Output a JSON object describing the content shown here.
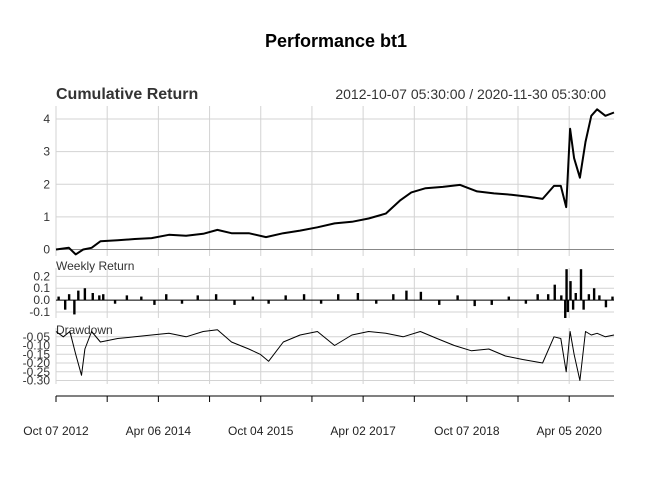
{
  "chart_data": {
    "type": "line",
    "title": "Performance bt1",
    "date_range": "2012-10-07 05:30:00 / 2020-11-30 05:30:00",
    "x_tick_labels": [
      "Oct 07 2012",
      "Apr 06 2014",
      "Oct 04 2015",
      "Apr 02 2017",
      "Oct 07 2018",
      "Apr 05 2020"
    ],
    "panels": [
      {
        "label": "Cumulative Return",
        "type": "line",
        "ylim": [
          -0.2,
          4.4
        ],
        "yticks": [
          "0",
          "1",
          "2",
          "3",
          "4"
        ],
        "x": [
          "2012-10-07",
          "2012-12-15",
          "2013-01-20",
          "2013-03-01",
          "2013-04-15",
          "2013-06-01",
          "2013-09-01",
          "2013-12-01",
          "2014-03-01",
          "2014-06-01",
          "2014-09-01",
          "2014-12-01",
          "2015-02-15",
          "2015-05-01",
          "2015-08-01",
          "2015-11-01",
          "2016-02-01",
          "2016-05-01",
          "2016-08-01",
          "2016-11-01",
          "2017-02-01",
          "2017-05-01",
          "2017-08-01",
          "2017-10-15",
          "2017-12-15",
          "2018-03-01",
          "2018-06-01",
          "2018-09-01",
          "2018-12-01",
          "2019-03-01",
          "2019-06-01",
          "2019-09-01",
          "2019-11-15",
          "2020-01-15",
          "2020-02-20",
          "2020-03-20",
          "2020-04-10",
          "2020-05-01",
          "2020-06-01",
          "2020-07-01",
          "2020-08-01",
          "2020-09-01",
          "2020-10-15",
          "2020-11-30"
        ],
        "values": [
          0.0,
          0.05,
          -0.15,
          0.0,
          0.05,
          0.25,
          0.28,
          0.32,
          0.35,
          0.45,
          0.42,
          0.48,
          0.6,
          0.5,
          0.5,
          0.38,
          0.5,
          0.58,
          0.68,
          0.8,
          0.85,
          0.95,
          1.1,
          1.5,
          1.75,
          1.88,
          1.92,
          1.98,
          1.78,
          1.72,
          1.68,
          1.62,
          1.55,
          1.95,
          1.95,
          1.3,
          3.7,
          2.8,
          2.2,
          3.3,
          4.1,
          4.3,
          4.1,
          4.2
        ]
      },
      {
        "label": "Weekly Return",
        "type": "bar",
        "ylim": [
          -0.15,
          0.27
        ],
        "yticks": [
          "0.2",
          "0.1",
          "0.0",
          "-0.1"
        ],
        "x": [
          "2012-10-21",
          "2012-11-25",
          "2012-12-16",
          "2013-01-13",
          "2013-02-03",
          "2013-03-10",
          "2013-04-21",
          "2013-05-26",
          "2013-06-16",
          "2013-08-18",
          "2013-10-20",
          "2014-01-05",
          "2014-03-16",
          "2014-05-18",
          "2014-08-10",
          "2014-11-02",
          "2015-02-08",
          "2015-05-17",
          "2015-08-23",
          "2015-11-15",
          "2016-02-14",
          "2016-05-22",
          "2016-08-21",
          "2016-11-20",
          "2017-03-05",
          "2017-06-11",
          "2017-09-10",
          "2017-11-19",
          "2018-02-04",
          "2018-05-13",
          "2018-08-19",
          "2018-11-18",
          "2019-02-17",
          "2019-05-19",
          "2019-08-18",
          "2019-10-20",
          "2019-12-15",
          "2020-01-19",
          "2020-02-23",
          "2020-03-15",
          "2020-03-22",
          "2020-03-29",
          "2020-04-12",
          "2020-04-26",
          "2020-05-10",
          "2020-06-07",
          "2020-06-21",
          "2020-07-19",
          "2020-08-16",
          "2020-09-13",
          "2020-10-18",
          "2020-11-22"
        ],
        "values": [
          0.03,
          -0.08,
          0.05,
          -0.12,
          0.08,
          0.1,
          0.06,
          0.04,
          0.05,
          -0.03,
          0.04,
          0.03,
          -0.04,
          0.05,
          -0.03,
          0.04,
          0.05,
          -0.04,
          0.03,
          -0.03,
          0.04,
          0.05,
          -0.03,
          0.05,
          0.06,
          -0.03,
          0.05,
          0.08,
          0.07,
          -0.04,
          0.04,
          -0.05,
          -0.04,
          0.03,
          -0.03,
          0.05,
          0.05,
          0.13,
          0.04,
          -0.15,
          0.26,
          -0.1,
          0.16,
          -0.08,
          0.06,
          0.26,
          -0.08,
          0.05,
          0.1,
          0.04,
          -0.06,
          0.03
        ]
      },
      {
        "label": "Drawdown",
        "type": "line",
        "ylim": [
          -0.32,
          0.0
        ],
        "yticks": [
          "-0.05",
          "-0.10",
          "-0.15",
          "-0.20",
          "-0.25",
          "-0.30"
        ],
        "x": [
          "2012-10-07",
          "2012-11-15",
          "2012-12-20",
          "2013-01-20",
          "2013-02-20",
          "2013-03-10",
          "2013-04-15",
          "2013-06-01",
          "2013-09-01",
          "2013-12-01",
          "2014-03-01",
          "2014-06-01",
          "2014-09-01",
          "2014-12-01",
          "2015-02-15",
          "2015-05-01",
          "2015-08-01",
          "2015-10-01",
          "2015-11-15",
          "2016-02-01",
          "2016-05-01",
          "2016-08-01",
          "2016-11-01",
          "2017-02-01",
          "2017-05-01",
          "2017-08-01",
          "2017-11-01",
          "2018-02-01",
          "2018-05-01",
          "2018-08-01",
          "2018-11-01",
          "2019-02-01",
          "2019-05-01",
          "2019-08-01",
          "2019-11-15",
          "2020-01-15",
          "2020-02-20",
          "2020-03-20",
          "2020-04-10",
          "2020-05-01",
          "2020-06-01",
          "2020-07-01",
          "2020-08-01",
          "2020-09-01",
          "2020-10-15",
          "2020-11-30"
        ],
        "values": [
          -0.02,
          -0.05,
          -0.02,
          -0.15,
          -0.27,
          -0.12,
          -0.02,
          -0.08,
          -0.06,
          -0.05,
          -0.04,
          -0.03,
          -0.05,
          -0.02,
          -0.01,
          -0.08,
          -0.12,
          -0.15,
          -0.19,
          -0.08,
          -0.04,
          -0.02,
          -0.1,
          -0.04,
          -0.02,
          -0.03,
          -0.05,
          -0.02,
          -0.06,
          -0.1,
          -0.13,
          -0.12,
          -0.16,
          -0.18,
          -0.2,
          -0.05,
          -0.06,
          -0.25,
          -0.02,
          -0.15,
          -0.3,
          -0.02,
          -0.04,
          -0.03,
          -0.05,
          -0.04
        ]
      }
    ]
  }
}
